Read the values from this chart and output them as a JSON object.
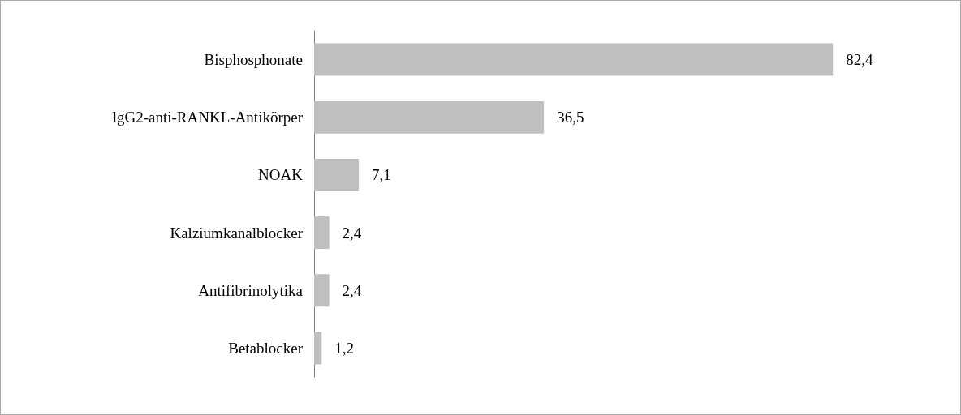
{
  "chart_data": {
    "type": "bar",
    "orientation": "horizontal",
    "categories": [
      "Bisphosphonate",
      "lgG2-anti-RANKL-Antikörper",
      "NOAK",
      "Kalziumkanalblocker",
      "Antifibrinolytika",
      "Betablocker"
    ],
    "values": [
      82.4,
      36.5,
      7.1,
      2.4,
      2.4,
      1.2
    ],
    "value_labels": [
      "82,4",
      "36,5",
      "7,1",
      "2,4",
      "2,4",
      "1,2"
    ],
    "color": "#bfbfbf"
  }
}
